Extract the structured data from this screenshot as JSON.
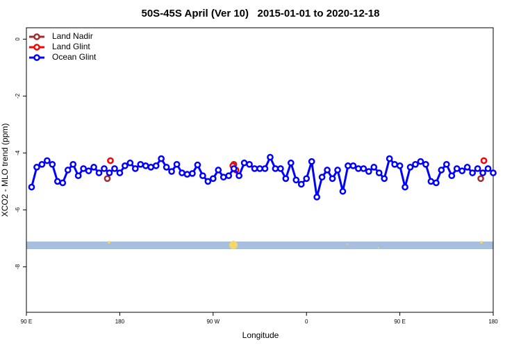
{
  "chart_data": {
    "type": "line",
    "title": "50S-45S April (Ver 10)   2015-01-01 to 2020-12-18",
    "x_label": "Longitude",
    "y_label": "XCO2 - MLO trend (ppm)",
    "xlim": [
      90,
      540
    ],
    "ylim": [
      -9.6,
      0.4
    ],
    "xticks": [
      {
        "value": 90,
        "label": "90 E"
      },
      180,
      {
        "value": 270,
        "label": "90 W"
      },
      {
        "value": 360,
        "label": "0"
      },
      {
        "value": 450,
        "label": "90 E"
      },
      {
        "value": 540,
        "label": "180"
      }
    ],
    "yticks": [
      0,
      -2,
      -4,
      -6,
      -8
    ],
    "legend": "top-left",
    "series": [
      {
        "name": "Land Nadir",
        "color": "#a52a2a",
        "x": [
          168,
          290,
          528
        ],
        "values": [
          -4.9,
          -4.4,
          -4.9
        ]
      },
      {
        "name": "Land Glint",
        "color": "#ff0000",
        "x": [
          171,
          289,
          292,
          531
        ],
        "values": [
          -4.27,
          -4.45,
          -4.6,
          -4.27
        ]
      },
      {
        "name": "Ocean Glint",
        "color": "#0000ff",
        "x": [
          95,
          100,
          105,
          110,
          115,
          120,
          125,
          130,
          135,
          140,
          145,
          150,
          155,
          160,
          165,
          170,
          175,
          180,
          185,
          190,
          195,
          200,
          205,
          210,
          215,
          220,
          225,
          230,
          235,
          240,
          245,
          250,
          255,
          260,
          265,
          270,
          275,
          280,
          285,
          290,
          295,
          300,
          305,
          310,
          315,
          320,
          325,
          330,
          335,
          340,
          345,
          350,
          355,
          360,
          365,
          370,
          375,
          380,
          385,
          390,
          395,
          400,
          405,
          410,
          415,
          420,
          425,
          430,
          435,
          440,
          445,
          450,
          455,
          460,
          465,
          470,
          475,
          480,
          485,
          490,
          495,
          500,
          505,
          510,
          515,
          520,
          525,
          530,
          535,
          540
        ],
        "values": [
          -5.2,
          -4.5,
          -4.4,
          -4.27,
          -4.4,
          -5.0,
          -5.05,
          -4.6,
          -4.4,
          -4.8,
          -4.55,
          -4.63,
          -4.5,
          -4.7,
          -4.55,
          -4.7,
          -4.55,
          -4.7,
          -4.45,
          -4.35,
          -4.55,
          -4.4,
          -4.45,
          -4.5,
          -4.45,
          -4.2,
          -4.5,
          -4.65,
          -4.4,
          -4.7,
          -4.75,
          -4.72,
          -4.42,
          -4.8,
          -5.0,
          -4.9,
          -4.6,
          -4.85,
          -4.8,
          -4.55,
          -4.8,
          -4.35,
          -4.4,
          -4.55,
          -4.55,
          -4.55,
          -4.15,
          -4.55,
          -4.55,
          -4.9,
          -4.35,
          -4.95,
          -5.1,
          -4.9,
          -4.3,
          -5.55,
          -4.85,
          -4.6,
          -4.9,
          -4.6,
          -5.35,
          -4.45,
          -4.45,
          -4.55,
          -4.55,
          -4.65,
          -4.5,
          -4.7,
          -4.9,
          -4.2,
          -4.4,
          -4.45,
          -5.2,
          -4.5,
          -4.4,
          -4.3,
          -4.4,
          -5.0,
          -5.05,
          -4.6,
          -4.4,
          -4.8,
          -4.55,
          -4.63,
          -4.5,
          -4.7,
          -4.55,
          -4.7,
          -4.55,
          -4.7
        ]
      }
    ]
  }
}
